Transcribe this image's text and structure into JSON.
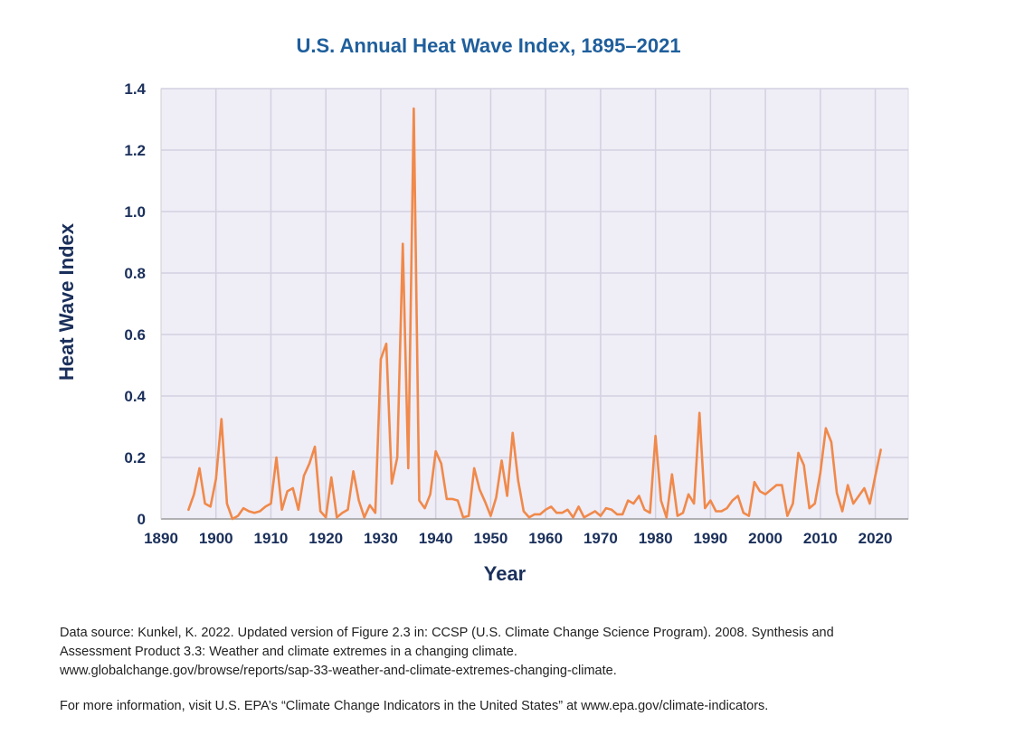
{
  "chart_data": {
    "type": "line",
    "title": "U.S. Annual Heat Wave Index, 1895–2021",
    "xlabel": "Year",
    "ylabel": "Heat Wave Index",
    "xlim": [
      1890,
      2026
    ],
    "ylim": [
      0,
      1.4
    ],
    "x_ticks": [
      "1890",
      "1900",
      "1910",
      "1920",
      "1930",
      "1940",
      "1950",
      "1960",
      "1970",
      "1980",
      "1990",
      "2000",
      "2010",
      "2020"
    ],
    "y_ticks": [
      "0",
      "0.2",
      "0.4",
      "0.6",
      "0.8",
      "1.0",
      "1.2",
      "1.4"
    ],
    "grid": true,
    "line_color": "#f0894a",
    "series": [
      {
        "x": [
          1895,
          1896,
          1897,
          1898,
          1899,
          1900,
          1901,
          1902,
          1903,
          1904,
          1905,
          1906,
          1907,
          1908,
          1909,
          1910,
          1911,
          1912,
          1913,
          1914,
          1915,
          1916,
          1917,
          1918,
          1919,
          1920,
          1921,
          1922,
          1923,
          1924,
          1925,
          1926,
          1927,
          1928,
          1929,
          1930,
          1931,
          1932,
          1933,
          1934,
          1935,
          1936,
          1937,
          1938,
          1939,
          1940,
          1941,
          1942,
          1943,
          1944,
          1945,
          1946,
          1947,
          1948,
          1949,
          1950,
          1951,
          1952,
          1953,
          1954,
          1955,
          1956,
          1957,
          1958,
          1959,
          1960,
          1961,
          1962,
          1963,
          1964,
          1965,
          1966,
          1967,
          1968,
          1969,
          1970,
          1971,
          1972,
          1973,
          1974,
          1975,
          1976,
          1977,
          1978,
          1979,
          1980,
          1981,
          1982,
          1983,
          1984,
          1985,
          1986,
          1987,
          1988,
          1989,
          1990,
          1991,
          1992,
          1993,
          1994,
          1995,
          1996,
          1997,
          1998,
          1999,
          2000,
          2001,
          2002,
          2003,
          2004,
          2005,
          2006,
          2007,
          2008,
          2009,
          2010,
          2011,
          2012,
          2013,
          2014,
          2015,
          2016,
          2017,
          2018,
          2019,
          2020,
          2021
        ],
        "y": [
          0.03,
          0.08,
          0.165,
          0.05,
          0.04,
          0.13,
          0.325,
          0.05,
          0.0,
          0.01,
          0.035,
          0.025,
          0.02,
          0.025,
          0.04,
          0.05,
          0.2,
          0.03,
          0.09,
          0.1,
          0.03,
          0.14,
          0.18,
          0.235,
          0.025,
          0.005,
          0.135,
          0.005,
          0.02,
          0.03,
          0.155,
          0.06,
          0.005,
          0.045,
          0.02,
          0.52,
          0.57,
          0.115,
          0.2,
          0.895,
          0.165,
          1.335,
          0.06,
          0.035,
          0.08,
          0.22,
          0.18,
          0.065,
          0.065,
          0.06,
          0.005,
          0.01,
          0.165,
          0.095,
          0.055,
          0.01,
          0.07,
          0.19,
          0.075,
          0.28,
          0.125,
          0.025,
          0.005,
          0.015,
          0.015,
          0.03,
          0.04,
          0.02,
          0.02,
          0.03,
          0.005,
          0.04,
          0.005,
          0.015,
          0.025,
          0.01,
          0.035,
          0.03,
          0.015,
          0.015,
          0.06,
          0.05,
          0.075,
          0.03,
          0.02,
          0.27,
          0.06,
          0.005,
          0.145,
          0.01,
          0.02,
          0.08,
          0.05,
          0.345,
          0.035,
          0.06,
          0.025,
          0.025,
          0.035,
          0.06,
          0.075,
          0.02,
          0.01,
          0.12,
          0.09,
          0.08,
          0.095,
          0.11,
          0.11,
          0.01,
          0.05,
          0.215,
          0.175,
          0.035,
          0.05,
          0.15,
          0.295,
          0.25,
          0.085,
          0.025,
          0.11,
          0.05,
          0.075,
          0.1,
          0.05,
          0.14,
          0.225
        ]
      }
    ]
  },
  "footnote": {
    "line1": "Data source: Kunkel, K. 2022. Updated version of Figure 2.3 in: CCSP (U.S. Climate Change Science Program). 2008. Synthesis and",
    "line2": "Assessment Product 3.3: Weather and climate extremes in a changing climate.",
    "line3": "www.globalchange.gov/browse/reports/sap-33-weather-and-climate-extremes-changing-climate.",
    "line4": "For more information, visit U.S. EPA’s “Climate Change Indicators in the United States” at www.epa.gov/climate-indicators."
  }
}
